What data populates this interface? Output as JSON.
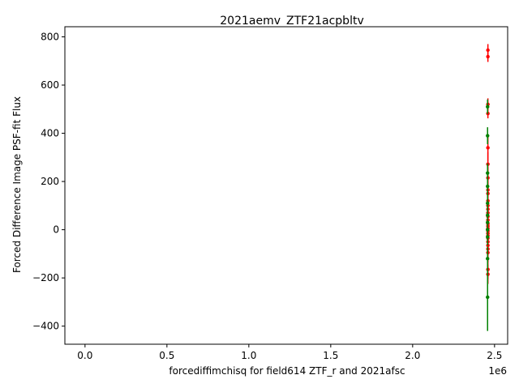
{
  "chart_data": {
    "type": "scatter",
    "title": "2021aemv_ZTF21acpbltv",
    "xlabel": "forcediffimchisq for field614 ZTF_r and 2021afsc",
    "ylabel": "Forced Difference Image PSF-fit Flux",
    "x_offset_label": "1e6",
    "xlim": [
      -0.123,
      2.58
    ],
    "ylim": [
      -475,
      842
    ],
    "x_ticks": [
      0.0,
      0.5,
      1.0,
      1.5,
      2.0,
      2.5
    ],
    "x_tick_labels": [
      "0.0",
      "0.5",
      "1.0",
      "1.5",
      "2.0",
      "2.5"
    ],
    "y_ticks": [
      -400,
      -200,
      0,
      200,
      400,
      600,
      800
    ],
    "y_tick_labels": [
      "−400",
      "−200",
      "0",
      "200",
      "400",
      "600",
      "800"
    ],
    "grid": false,
    "legend": "none",
    "series": [
      {
        "color": "#ff0000",
        "x": 2.4595,
        "points": [
          {
            "y": 745,
            "err": 25
          },
          {
            "y": 718,
            "err": 22
          },
          {
            "y": 520,
            "err": 25
          },
          {
            "y": 482,
            "err": 20
          },
          {
            "y": 340,
            "err": 55
          },
          {
            "y": 272,
            "err": 50
          },
          {
            "y": 215,
            "err": 45
          },
          {
            "y": 165,
            "err": 60
          },
          {
            "y": 150,
            "err": 50
          },
          {
            "y": 120,
            "err": 40
          },
          {
            "y": 100,
            "err": 35
          },
          {
            "y": 85,
            "err": 35
          },
          {
            "y": 70,
            "err": 30
          },
          {
            "y": 55,
            "err": 30
          },
          {
            "y": 40,
            "err": 30
          },
          {
            "y": 25,
            "err": 30
          },
          {
            "y": 15,
            "err": 30
          },
          {
            "y": 5,
            "err": 30
          },
          {
            "y": -5,
            "err": 30
          },
          {
            "y": -15,
            "err": 30
          },
          {
            "y": -25,
            "err": 30
          },
          {
            "y": -35,
            "err": 30
          },
          {
            "y": -50,
            "err": 30
          },
          {
            "y": -65,
            "err": 35
          },
          {
            "y": -80,
            "err": 35
          },
          {
            "y": -95,
            "err": 40
          },
          {
            "y": -165,
            "err": 40
          },
          {
            "y": -185,
            "err": 40
          }
        ]
      },
      {
        "color": "#008000",
        "x": 2.4575,
        "points": [
          {
            "y": 510,
            "err": 30
          },
          {
            "y": 390,
            "err": 35
          },
          {
            "y": 235,
            "err": 40
          },
          {
            "y": 180,
            "err": 45
          },
          {
            "y": 110,
            "err": 50
          },
          {
            "y": 60,
            "err": 40
          },
          {
            "y": 30,
            "err": 35
          },
          {
            "y": 0,
            "err": 30
          },
          {
            "y": -30,
            "err": 35
          },
          {
            "y": -120,
            "err": 50
          },
          {
            "y": -280,
            "err": 140
          }
        ]
      }
    ]
  }
}
